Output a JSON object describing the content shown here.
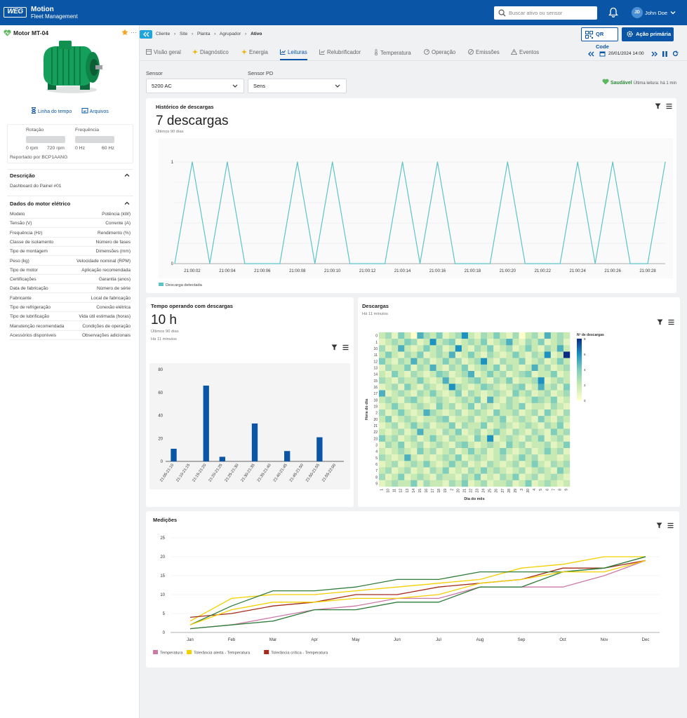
{
  "header": {
    "logo_text": "WEG",
    "app_name": "Motion",
    "app_subtitle": "Fleet Management",
    "search_placeholder": "Buscar ativo ou sensor",
    "user_initials": "JD",
    "user_name": "John Doe"
  },
  "sidebar": {
    "asset_title": "Motor MT-04",
    "links": {
      "timeline": "Linha do tempo",
      "files": "Arquivos"
    },
    "rotation": {
      "label": "Rotação",
      "min": "0 rpm",
      "max": "720 rpm"
    },
    "frequency": {
      "label": "Frequência",
      "min": "0 Hz",
      "max": "60 Hz"
    },
    "reported_by": "Reportado por BCP1AANG",
    "description": {
      "title": "Descrição",
      "text": "Dashboard do Painel #01"
    },
    "motor_data": {
      "title": "Dados do motor elétrico",
      "rows": [
        [
          "Modelo",
          "Potência (kW)"
        ],
        [
          "Tensão (V)",
          "Corrente (A)"
        ],
        [
          "Frequência (Hz)",
          "Rendimento (%)"
        ],
        [
          "Classe de isolamento",
          "Número de fases"
        ],
        [
          "Tipo de montagem",
          "Dimensões (mm)"
        ],
        [
          "Peso (kg)",
          "Velocidade nominal (RPM)"
        ],
        [
          "Tipo de motor",
          "Aplicação recomendada"
        ],
        [
          "Certificações",
          "Garantia (anos)"
        ],
        [
          "Data de fabricação",
          "Número de série"
        ],
        [
          "Fabricante",
          "Local de fabricação"
        ],
        [
          "Tipo de refrigeração",
          "Conexão elétrica"
        ],
        [
          "Tipo de lubrificação",
          "Vida útil estimada (horas)"
        ],
        [
          "Manutenção recomendada",
          "Condições de operação"
        ],
        [
          "Acessórios disponíveis",
          "Observações adicionais"
        ]
      ]
    }
  },
  "breadcrumb": [
    "Cliente",
    "Site",
    "Planta",
    "Agrupador",
    "Ativo"
  ],
  "buttons": {
    "qr": "QR Code",
    "primary": "Ação primária"
  },
  "tabs": [
    "Visão geral",
    "Diagnóstico",
    "Energia",
    "Leituras",
    "Relubrificador",
    "Temperatura",
    "Operação",
    "Emissões",
    "Eventos"
  ],
  "active_tab": "Leituras",
  "datetime": "20/01/2024 14:00",
  "filters": {
    "sensor": {
      "label": "Sensor",
      "value": "5200 AC"
    },
    "sensor_pd": {
      "label": "Sensor PD",
      "value": "Sens"
    }
  },
  "status": {
    "label": "Saudável",
    "last_reading": "Última leitura: há 1 min"
  },
  "colors": {
    "primary": "#0a55a5",
    "teal": "#5ec4c8",
    "healthy": "#2e8b3c"
  },
  "panels": {
    "history": {
      "title": "Histórico de descargas",
      "value": "7 descargas",
      "subtitle": "Últimos 90 dias"
    },
    "operating": {
      "title": "Tempo operando com descargas",
      "value": "10 h",
      "subtitle": "Últimos 90 dias",
      "updated": "Há 11 minutos"
    },
    "heatmap": {
      "title": "Descargas",
      "updated": "Há 11 minutos"
    },
    "measurements": {
      "title": "Medições"
    }
  },
  "chart_data": [
    {
      "type": "line",
      "x": [
        "21:00:01",
        "21:00:02",
        "21:00:03",
        "21:00:04",
        "21:00:05",
        "21:00:06",
        "21:00:07",
        "21:00:08",
        "21:00:09",
        "21:00:10",
        "21:00:11",
        "21:00:12",
        "21:00:13",
        "21:00:14",
        "21:00:15",
        "21:00:16",
        "21:00:17",
        "21:00:18",
        "21:00:19",
        "21:00:20",
        "21:00:21",
        "21:00:22",
        "21:00:23",
        "21:00:24",
        "21:00:25",
        "21:00:26",
        "21:00:27",
        "21:00:28",
        "21:00:29"
      ],
      "x_ticks": [
        "21:00:02",
        "21:00:04",
        "21:00:06",
        "21:00:08",
        "21:00:10",
        "21:00:12",
        "21:00:14",
        "21:00:16",
        "21:00:18",
        "21:00:20",
        "21:00:22",
        "21:00:24",
        "21:00:26",
        "21:00:28"
      ],
      "series": [
        {
          "name": "Descarga detectada",
          "color": "#5ec4c8",
          "values": [
            0,
            1,
            0,
            1,
            0,
            0,
            0,
            1,
            0,
            1,
            0,
            0,
            0,
            1,
            0,
            1,
            0,
            0,
            0,
            1,
            0,
            0,
            0,
            1,
            0,
            1,
            0,
            0,
            1
          ]
        }
      ],
      "ylim": [
        0,
        1
      ],
      "y_ticks": [
        0,
        1
      ],
      "legend": "bottom-left"
    },
    {
      "type": "bar",
      "categories": [
        "21:05-21:10",
        "21:10-21:15",
        "21:15-21:20",
        "21:20-21:25",
        "21:25-21:30",
        "21:30-21:35",
        "21:35-21:40",
        "21:40-21:45",
        "21:45-21:50",
        "21:50-21:55",
        "21:55-22:00"
      ],
      "values": [
        11,
        0,
        66,
        4,
        0,
        33,
        0,
        9,
        0,
        21,
        0
      ],
      "ylim": [
        0,
        80
      ],
      "y_ticks": [
        0,
        20,
        40,
        60,
        80
      ],
      "color": "#0a55a5"
    },
    {
      "type": "heatmap",
      "xlabel": "Dia do mês",
      "ylabel": "Hora do dia",
      "x": [
        "1",
        "10",
        "11",
        "12",
        "13",
        "14",
        "15",
        "16",
        "17",
        "18",
        "19",
        "2",
        "20",
        "21",
        "22",
        "23",
        "24",
        "25",
        "26",
        "27",
        "28",
        "29",
        "3",
        "30",
        "4",
        "5",
        "6",
        "7",
        "8",
        "9"
      ],
      "y": [
        "0",
        "1",
        "10",
        "11",
        "12",
        "13",
        "14",
        "15",
        "16",
        "17",
        "18",
        "19",
        "2",
        "20",
        "21",
        "22",
        "23",
        "3",
        "4",
        "5",
        "6",
        "7",
        "8",
        "9"
      ],
      "legend_title": "Nº de descargas",
      "scale_ticks": [
        0,
        2,
        4,
        6,
        8
      ],
      "vmax": 8,
      "z": [
        [
          2,
          3,
          1,
          4,
          2,
          0,
          5,
          3,
          2,
          4,
          1,
          2,
          3,
          6,
          2,
          1,
          3,
          2,
          4,
          2,
          1,
          3,
          0,
          2,
          3,
          1,
          5,
          2,
          3,
          2
        ],
        [
          1,
          2,
          3,
          2,
          4,
          3,
          1,
          2,
          6,
          2,
          3,
          4,
          1,
          2,
          3,
          2,
          4,
          1,
          2,
          3,
          5,
          2,
          1,
          3,
          2,
          4,
          1,
          2,
          3,
          1
        ],
        [
          3,
          1,
          2,
          5,
          2,
          1,
          2,
          4,
          2,
          3,
          1,
          2,
          6,
          2,
          1,
          3,
          2,
          4,
          1,
          2,
          3,
          1,
          2,
          4,
          2,
          1,
          3,
          2,
          5,
          2
        ],
        [
          2,
          4,
          2,
          1,
          3,
          2,
          4,
          1,
          2,
          3,
          2,
          5,
          1,
          2,
          4,
          2,
          1,
          3,
          2,
          1,
          2,
          4,
          2,
          1,
          3,
          2,
          6,
          1,
          2,
          8
        ],
        [
          4,
          2,
          1,
          3,
          2,
          5,
          2,
          3,
          1,
          2,
          4,
          2,
          3,
          1,
          2,
          3,
          6,
          2,
          1,
          3,
          2,
          2,
          4,
          1,
          2,
          3,
          1,
          2,
          4,
          2
        ],
        [
          1,
          3,
          2,
          2,
          4,
          1,
          3,
          2,
          5,
          2,
          1,
          3,
          2,
          4,
          1,
          2,
          3,
          2,
          4,
          1,
          3,
          2,
          1,
          2,
          5,
          2,
          3,
          1,
          2,
          3
        ],
        [
          2,
          1,
          4,
          2,
          1,
          3,
          2,
          1,
          2,
          4,
          3,
          1,
          2,
          3,
          5,
          1,
          2,
          4,
          2,
          3,
          1,
          2,
          3,
          4,
          1,
          2,
          2,
          4,
          1,
          2
        ],
        [
          3,
          2,
          1,
          3,
          2,
          2,
          4,
          2,
          1,
          2,
          5,
          2,
          1,
          2,
          3,
          4,
          2,
          1,
          3,
          2,
          4,
          1,
          2,
          2,
          3,
          6,
          1,
          2,
          3,
          2
        ],
        [
          1,
          2,
          3,
          1,
          4,
          2,
          1,
          3,
          2,
          1,
          2,
          6,
          3,
          2,
          1,
          2,
          4,
          3,
          2,
          1,
          2,
          3,
          4,
          1,
          2,
          5,
          2,
          3,
          1,
          4
        ],
        [
          5,
          1,
          2,
          3,
          2,
          1,
          3,
          2,
          4,
          2,
          1,
          2,
          4,
          1,
          3,
          2,
          1,
          2,
          3,
          2,
          1,
          4,
          2,
          3,
          1,
          2,
          3,
          1,
          2,
          3
        ],
        [
          2,
          3,
          2,
          1,
          3,
          4,
          2,
          1,
          2,
          3,
          2,
          1,
          2,
          3,
          2,
          4,
          1,
          5,
          2,
          1,
          3,
          2,
          1,
          2,
          4,
          3,
          2,
          4,
          1,
          2
        ],
        [
          1,
          2,
          4,
          2,
          1,
          2,
          3,
          2,
          1,
          4,
          2,
          3,
          1,
          2,
          4,
          1,
          3,
          2,
          1,
          2,
          3,
          2,
          4,
          1,
          2,
          2,
          1,
          3,
          2,
          1
        ],
        [
          3,
          1,
          2,
          4,
          2,
          1,
          2,
          5,
          3,
          2,
          1,
          2,
          3,
          1,
          2,
          3,
          2,
          1,
          4,
          2,
          2,
          3,
          1,
          2,
          3,
          1,
          4,
          2,
          1,
          3
        ],
        [
          2,
          4,
          1,
          2,
          3,
          2,
          1,
          2,
          2,
          3,
          4,
          1,
          2,
          2,
          3,
          1,
          2,
          3,
          2,
          4,
          1,
          2,
          3,
          2,
          1,
          4,
          2,
          1,
          3,
          2
        ],
        [
          1,
          2,
          3,
          1,
          2,
          4,
          2,
          3,
          1,
          2,
          2,
          4,
          1,
          3,
          2,
          2,
          4,
          1,
          2,
          3,
          2,
          1,
          2,
          3,
          2,
          1,
          3,
          2,
          4,
          1
        ],
        [
          2,
          1,
          2,
          3,
          1,
          2,
          5,
          2,
          2,
          1,
          3,
          2,
          4,
          1,
          2,
          3,
          1,
          2,
          4,
          2,
          1,
          3,
          2,
          1,
          3,
          2,
          1,
          4,
          2,
          3
        ],
        [
          4,
          2,
          3,
          1,
          2,
          3,
          1,
          2,
          4,
          2,
          1,
          3,
          2,
          2,
          1,
          4,
          2,
          6,
          1,
          2,
          3,
          2,
          1,
          3,
          2,
          4,
          1,
          2,
          3,
          1
        ],
        [
          1,
          3,
          2,
          4,
          1,
          2,
          3,
          1,
          2,
          3,
          2,
          1,
          3,
          4,
          2,
          1,
          2,
          3,
          2,
          1,
          4,
          2,
          3,
          1,
          2,
          2,
          3,
          1,
          2,
          4
        ],
        [
          2,
          1,
          2,
          3,
          2,
          1,
          4,
          2,
          3,
          1,
          2,
          3,
          1,
          2,
          4,
          2,
          3,
          1,
          2,
          4,
          2,
          1,
          2,
          3,
          1,
          2,
          4,
          2,
          3,
          1
        ],
        [
          3,
          2,
          1,
          2,
          5,
          2,
          1,
          2,
          1,
          2,
          3,
          2,
          4,
          1,
          2,
          3,
          2,
          1,
          2,
          3,
          1,
          2,
          4,
          2,
          3,
          1,
          2,
          2,
          1,
          2
        ],
        [
          1,
          2,
          3,
          1,
          2,
          3,
          2,
          4,
          2,
          1,
          2,
          4,
          2,
          3,
          1,
          2,
          1,
          3,
          2,
          1,
          2,
          3,
          1,
          2,
          4,
          2,
          1,
          3,
          2,
          3
        ],
        [
          2,
          3,
          1,
          2,
          3,
          1,
          2,
          1,
          3,
          2,
          4,
          1,
          2,
          1,
          3,
          2,
          4,
          2,
          3,
          2,
          1,
          2,
          3,
          1,
          2,
          3,
          2,
          1,
          4,
          2
        ],
        [
          3,
          1,
          2,
          4,
          1,
          2,
          3,
          2,
          1,
          3,
          2,
          2,
          1,
          3,
          2,
          4,
          1,
          2,
          1,
          3,
          2,
          4,
          1,
          2,
          3,
          1,
          2,
          3,
          2,
          1
        ],
        [
          1,
          2,
          3,
          2,
          2,
          4,
          1,
          3,
          2,
          2,
          1,
          3,
          2,
          4,
          1,
          2,
          3,
          1,
          2,
          2,
          3,
          1,
          2,
          4,
          1,
          2,
          3,
          2,
          1,
          2
        ]
      ]
    },
    {
      "type": "line",
      "categories": [
        "Jan",
        "Feb",
        "Mar",
        "Apr",
        "May",
        "Jun",
        "Jul",
        "Aug",
        "Sep",
        "Oct",
        "Nov",
        "Dec"
      ],
      "ylim": [
        0,
        25
      ],
      "y_ticks": [
        0,
        5,
        10,
        15,
        20,
        25
      ],
      "legend": "bottom-left",
      "series": [
        {
          "name": "Temperatura",
          "color": "#cc79a7",
          "values": [
            1,
            2,
            4,
            6,
            7,
            9,
            9,
            12,
            12,
            12,
            15,
            19
          ]
        },
        {
          "name": "Tolerância alerta - Temperatura",
          "color": "#f5d000",
          "values": [
            3,
            9,
            10,
            10,
            11,
            12,
            13,
            14,
            17,
            18,
            20,
            20
          ]
        },
        {
          "name": "Tolerância crítica - Temperatura",
          "color": "#a52a1a",
          "values": [
            4,
            5,
            7,
            8,
            10,
            10,
            12,
            13,
            14,
            17,
            17,
            19
          ]
        },
        {
          "color": "#2f7d3a",
          "values": [
            2,
            7,
            11,
            11,
            12,
            14,
            14,
            16,
            16,
            16,
            17,
            20
          ]
        },
        {
          "color": "#2f7d3a",
          "values": [
            1,
            2,
            3,
            6,
            6,
            8,
            8,
            12,
            12,
            16,
            17,
            20
          ]
        },
        {
          "color": "#f5d000",
          "values": [
            2,
            6,
            8,
            8,
            9,
            9,
            10,
            13,
            14,
            16,
            16,
            19
          ]
        }
      ]
    }
  ]
}
